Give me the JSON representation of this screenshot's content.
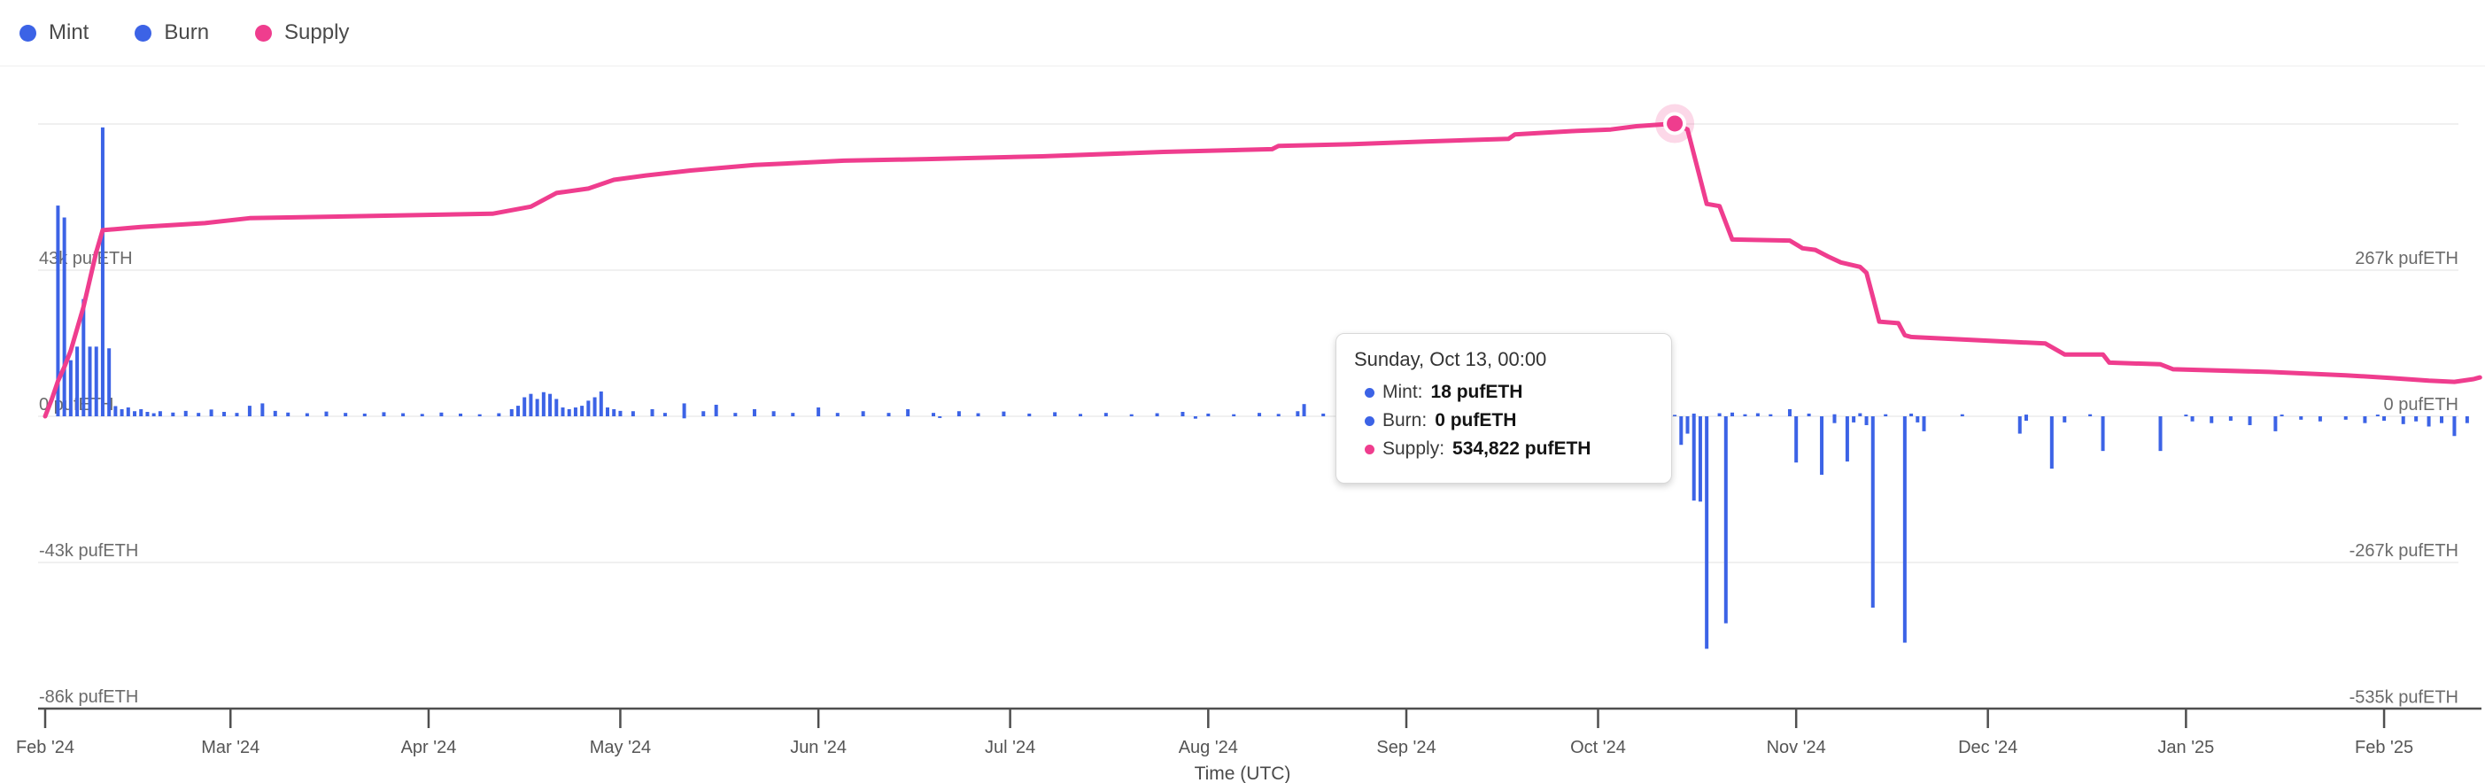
{
  "colors": {
    "mint": "#3c63e6",
    "burn": "#3c63e6",
    "supply": "#ef3d8e",
    "supply_halo": "rgba(239,61,142,0.20)",
    "grid": "#ebebeb",
    "axis_line": "#4f4f4f",
    "axis_text": "#6b6b6b",
    "tick_text": "#555555"
  },
  "legend": {
    "items": [
      {
        "label": "Mint",
        "color": "#3c63e6"
      },
      {
        "label": "Burn",
        "color": "#3c63e6"
      },
      {
        "label": "Supply",
        "color": "#ef3d8e"
      }
    ]
  },
  "tooltip": {
    "title": "Sunday, Oct 13, 00:00",
    "rows": [
      {
        "label": "Mint:",
        "value": "18 pufETH",
        "color": "#3c63e6"
      },
      {
        "label": "Burn:",
        "value": "0 pufETH",
        "color": "#3c63e6"
      },
      {
        "label": "Supply:",
        "value": "534,822 pufETH",
        "color": "#ef3d8e"
      }
    ]
  },
  "chart_data": {
    "type": "mixed",
    "unit": "pufETH",
    "x_axis": {
      "title": "Time (UTC)",
      "start_date": "2024-02-01",
      "tick_labels": [
        "Feb '24",
        "Mar '24",
        "Apr '24",
        "May '24",
        "Jun '24",
        "Jul '24",
        "Aug '24",
        "Sep '24",
        "Oct '24",
        "Nov '24",
        "Dec '24",
        "Jan '25",
        "Feb '25"
      ],
      "tick_day_offsets": [
        0,
        29,
        60,
        90,
        121,
        151,
        182,
        213,
        243,
        274,
        304,
        335,
        366
      ]
    },
    "y_axis_left": {
      "applies_to": "Mint/Burn bars",
      "labels": [
        "43k pufETH",
        "0 pufETH",
        "-43k pufETH",
        "-86k pufETH"
      ],
      "values": [
        43000,
        0,
        -43000,
        -86000
      ],
      "gridline_values": [
        86000,
        43000,
        0,
        -43000
      ],
      "range": [
        -86000,
        86000
      ]
    },
    "y_axis_right": {
      "applies_to": "Supply line",
      "labels": [
        "267k pufETH",
        "0 pufETH",
        "-267k pufETH",
        "-535k pufETH"
      ],
      "values": [
        267000,
        0,
        -267000,
        -535000
      ],
      "range": [
        -535000,
        535000
      ]
    },
    "highlight": {
      "series": "Supply",
      "day": 255,
      "date": "2024-10-13",
      "value": 534822
    },
    "series": [
      {
        "name": "Mint",
        "type": "bar",
        "axis": "left",
        "color": "#3c63e6",
        "points": [
          [
            2,
            62000
          ],
          [
            3,
            58500
          ],
          [
            4,
            16500
          ],
          [
            5,
            20500
          ],
          [
            6,
            34500
          ],
          [
            7,
            20500
          ],
          [
            8,
            20500
          ],
          [
            9,
            85000
          ],
          [
            10,
            20000
          ],
          [
            11,
            3000
          ],
          [
            12,
            2100
          ],
          [
            13,
            2600
          ],
          [
            14,
            1500
          ],
          [
            15,
            2100
          ],
          [
            16,
            1300
          ],
          [
            17,
            900
          ],
          [
            18,
            1500
          ],
          [
            20,
            1100
          ],
          [
            22,
            1600
          ],
          [
            24,
            1000
          ],
          [
            26,
            2000
          ],
          [
            28,
            1300
          ],
          [
            30,
            1000
          ],
          [
            32,
            3100
          ],
          [
            34,
            3800
          ],
          [
            36,
            1600
          ],
          [
            38,
            1100
          ],
          [
            41,
            900
          ],
          [
            44,
            1400
          ],
          [
            47,
            1000
          ],
          [
            50,
            800
          ],
          [
            53,
            1200
          ],
          [
            56,
            900
          ],
          [
            59,
            700
          ],
          [
            62,
            1100
          ],
          [
            65,
            800
          ],
          [
            68,
            600
          ],
          [
            71,
            900
          ],
          [
            73,
            2100
          ],
          [
            74,
            3100
          ],
          [
            75,
            5600
          ],
          [
            76,
            6600
          ],
          [
            77,
            5100
          ],
          [
            78,
            7100
          ],
          [
            79,
            6600
          ],
          [
            80,
            5100
          ],
          [
            81,
            2600
          ],
          [
            82,
            2100
          ],
          [
            83,
            2600
          ],
          [
            84,
            3100
          ],
          [
            85,
            4600
          ],
          [
            86,
            5600
          ],
          [
            87,
            7300
          ],
          [
            88,
            2600
          ],
          [
            89,
            2100
          ],
          [
            90,
            1600
          ],
          [
            92,
            1500
          ],
          [
            95,
            2100
          ],
          [
            97,
            1000
          ],
          [
            100,
            3800
          ],
          [
            103,
            1500
          ],
          [
            105,
            3400
          ],
          [
            108,
            1000
          ],
          [
            111,
            2100
          ],
          [
            114,
            1500
          ],
          [
            117,
            1000
          ],
          [
            121,
            2600
          ],
          [
            124,
            1000
          ],
          [
            128,
            1500
          ],
          [
            132,
            1000
          ],
          [
            135,
            2100
          ],
          [
            139,
            1000
          ],
          [
            143,
            1500
          ],
          [
            146,
            900
          ],
          [
            150,
            1400
          ],
          [
            154,
            800
          ],
          [
            158,
            1200
          ],
          [
            162,
            700
          ],
          [
            166,
            1000
          ],
          [
            170,
            600
          ],
          [
            174,
            900
          ],
          [
            178,
            1300
          ],
          [
            182,
            800
          ],
          [
            186,
            600
          ],
          [
            190,
            1000
          ],
          [
            193,
            700
          ],
          [
            196,
            1500
          ],
          [
            197,
            3600
          ],
          [
            200,
            800
          ],
          [
            204,
            600
          ],
          [
            208,
            900
          ],
          [
            212,
            600
          ],
          [
            216,
            800
          ],
          [
            220,
            500
          ],
          [
            224,
            700
          ],
          [
            228,
            500
          ],
          [
            232,
            800
          ],
          [
            236,
            500
          ],
          [
            240,
            700
          ],
          [
            244,
            600
          ],
          [
            248,
            500
          ],
          [
            252,
            600
          ],
          [
            255,
            18
          ],
          [
            258,
            800
          ],
          [
            262,
            900
          ],
          [
            264,
            1100
          ],
          [
            266,
            600
          ],
          [
            268,
            900
          ],
          [
            270,
            600
          ],
          [
            273,
            2100
          ],
          [
            276,
            800
          ],
          [
            280,
            600
          ],
          [
            284,
            900
          ],
          [
            288,
            600
          ],
          [
            292,
            800
          ],
          [
            300,
            600
          ],
          [
            310,
            500
          ],
          [
            320,
            600
          ],
          [
            335,
            500
          ],
          [
            350,
            500
          ],
          [
            365,
            500
          ]
        ]
      },
      {
        "name": "Burn",
        "type": "bar",
        "axis": "left",
        "color": "#3c63e6",
        "points": [
          [
            100,
            -600
          ],
          [
            140,
            -500
          ],
          [
            180,
            -700
          ],
          [
            210,
            -500
          ],
          [
            256,
            -8400
          ],
          [
            257,
            -5100
          ],
          [
            258,
            -24800
          ],
          [
            259,
            -25100
          ],
          [
            260,
            -68400
          ],
          [
            263,
            -60900
          ],
          [
            274,
            -13600
          ],
          [
            278,
            -17200
          ],
          [
            280,
            -2000
          ],
          [
            282,
            -13300
          ],
          [
            283,
            -1800
          ],
          [
            285,
            -2600
          ],
          [
            286,
            -56300
          ],
          [
            291,
            -66600
          ],
          [
            293,
            -1800
          ],
          [
            294,
            -4400
          ],
          [
            309,
            -5100
          ],
          [
            310,
            -1300
          ],
          [
            314,
            -15400
          ],
          [
            316,
            -1800
          ],
          [
            322,
            -10200
          ],
          [
            331,
            -10200
          ],
          [
            336,
            -1500
          ],
          [
            339,
            -2000
          ],
          [
            342,
            -1300
          ],
          [
            345,
            -2600
          ],
          [
            349,
            -4400
          ],
          [
            353,
            -1000
          ],
          [
            356,
            -1500
          ],
          [
            360,
            -1000
          ],
          [
            363,
            -2000
          ],
          [
            366,
            -1300
          ],
          [
            369,
            -2300
          ],
          [
            371,
            -1500
          ],
          [
            373,
            -3000
          ],
          [
            375,
            -2000
          ],
          [
            377,
            -5800
          ],
          [
            379,
            -2000
          ]
        ]
      },
      {
        "name": "Supply",
        "type": "line",
        "axis": "right",
        "color": "#ef3d8e",
        "points": [
          [
            0,
            0
          ],
          [
            1,
            30000
          ],
          [
            2,
            64000
          ],
          [
            3,
            90000
          ],
          [
            4,
            120000
          ],
          [
            5,
            160000
          ],
          [
            6,
            200000
          ],
          [
            7,
            250000
          ],
          [
            8,
            300000
          ],
          [
            9,
            340000
          ],
          [
            15,
            346000
          ],
          [
            25,
            353000
          ],
          [
            32,
            362000
          ],
          [
            70,
            370000
          ],
          [
            76,
            383000
          ],
          [
            80,
            408000
          ],
          [
            85,
            416000
          ],
          [
            89,
            432000
          ],
          [
            94,
            440000
          ],
          [
            101,
            449000
          ],
          [
            111,
            459000
          ],
          [
            125,
            467000
          ],
          [
            138,
            470000
          ],
          [
            156,
            475000
          ],
          [
            175,
            483000
          ],
          [
            192,
            488000
          ],
          [
            193,
            494000
          ],
          [
            204,
            497000
          ],
          [
            216,
            502000
          ],
          [
            229,
            507000
          ],
          [
            230,
            515000
          ],
          [
            239,
            521000
          ],
          [
            245,
            524000
          ],
          [
            249,
            530000
          ],
          [
            255,
            534822
          ],
          [
            257,
            524000
          ],
          [
            260,
            388000
          ],
          [
            262,
            384000
          ],
          [
            264,
            323000
          ],
          [
            273,
            321000
          ],
          [
            275,
            307000
          ],
          [
            277,
            304000
          ],
          [
            279,
            292000
          ],
          [
            281,
            281000
          ],
          [
            284,
            273000
          ],
          [
            285,
            262000
          ],
          [
            286,
            218000
          ],
          [
            287,
            173000
          ],
          [
            290,
            170000
          ],
          [
            291,
            148000
          ],
          [
            292,
            145000
          ],
          [
            313,
            133000
          ],
          [
            316,
            113000
          ],
          [
            322,
            113000
          ],
          [
            323,
            98000
          ],
          [
            331,
            95000
          ],
          [
            333,
            86000
          ],
          [
            348,
            81000
          ],
          [
            360,
            75000
          ],
          [
            367,
            70000
          ],
          [
            373,
            65000
          ],
          [
            377,
            63000
          ],
          [
            380,
            68000
          ],
          [
            381,
            71000
          ]
        ]
      }
    ]
  }
}
